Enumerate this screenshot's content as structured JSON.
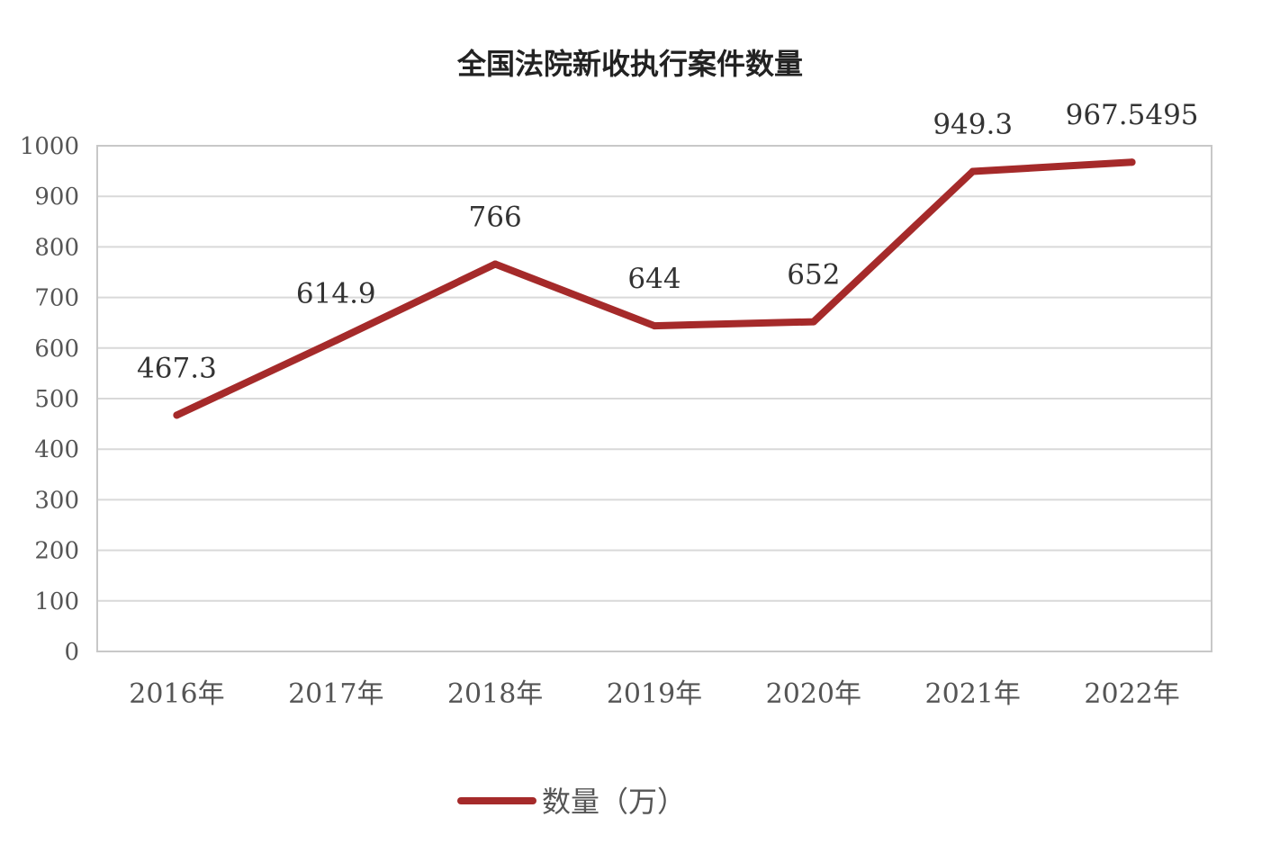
{
  "chart_data": {
    "type": "line",
    "title": "全国法院新收执行案件数量",
    "categories": [
      "2016年",
      "2017年",
      "2018年",
      "2019年",
      "2020年",
      "2021年",
      "2022年"
    ],
    "series": [
      {
        "name": "数量（万）",
        "values": [
          467.3,
          614.9,
          766,
          644,
          652,
          949.3,
          967.5495
        ],
        "labels": [
          "467.3",
          "614.9",
          "766",
          "644",
          "652",
          "949.3",
          "967.5495"
        ],
        "color": "#a52a2a"
      }
    ],
    "yticks": [
      "0",
      "100",
      "200",
      "300",
      "400",
      "500",
      "600",
      "700",
      "800",
      "900",
      "1000"
    ],
    "ylim": [
      0,
      1000
    ],
    "grid": true,
    "legend_position": "bottom"
  }
}
